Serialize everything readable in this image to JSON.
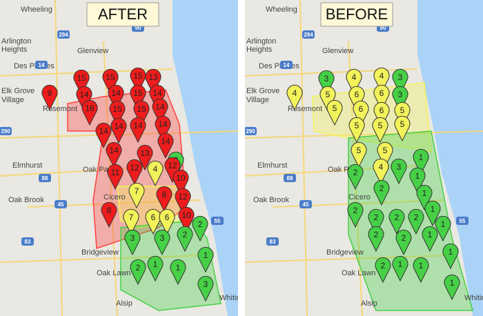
{
  "panels": [
    {
      "title": "AFTER",
      "pins": [
        9,
        15,
        15,
        15,
        13,
        14,
        14,
        15,
        14,
        16,
        15,
        15,
        14,
        14,
        14,
        14,
        14,
        14,
        13,
        14,
        3,
        11,
        12,
        4,
        12,
        10,
        7,
        8,
        12,
        8,
        7,
        6,
        6,
        10,
        2,
        3,
        3,
        2,
        2,
        1,
        1,
        1,
        3
      ]
    },
    {
      "title": "BEFORE",
      "pins": [
        3,
        4,
        4,
        3,
        4,
        5,
        6,
        6,
        3,
        5,
        6,
        6,
        5,
        5,
        5,
        5,
        5,
        5,
        4,
        3,
        1,
        2,
        2,
        1,
        1,
        2,
        2,
        2,
        2,
        1,
        1,
        2,
        2,
        1,
        1,
        2,
        1,
        1,
        1
      ]
    }
  ],
  "places": [
    "Wheeling",
    "Arlington",
    "Heights",
    "Glenview",
    "Des Plaines",
    "Elk Grove",
    "Village",
    "Rosemont",
    "Elmhurst",
    "Oak Park",
    "Cicero",
    "Oak Brook",
    "Bridgeview",
    "Oak Lawn",
    "Alsip",
    "Whiting"
  ],
  "roads": [
    "294",
    "14",
    "90",
    "290",
    "88",
    "45",
    "83",
    "55"
  ]
}
